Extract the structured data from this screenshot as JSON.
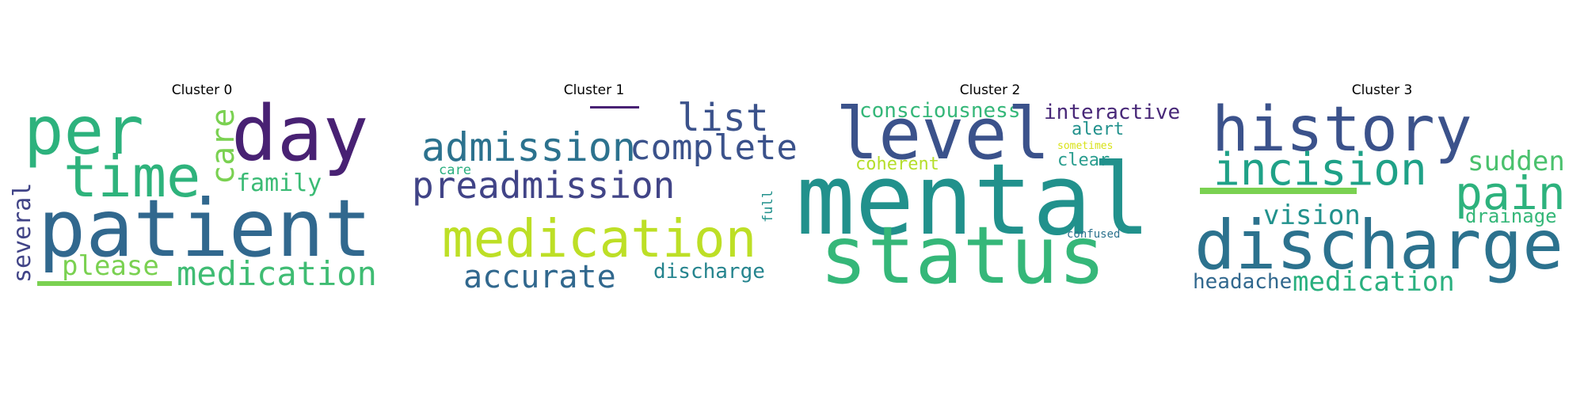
{
  "figure": {
    "clusters": [
      {
        "title": "Cluster 0",
        "words": [
          {
            "text": "per",
            "color": "#2db27d"
          },
          {
            "text": "day",
            "color": "#482173"
          },
          {
            "text": "care",
            "color": "#7ad151"
          },
          {
            "text": "time",
            "color": "#2eb37c"
          },
          {
            "text": "family",
            "color": "#3bbb75"
          },
          {
            "text": "patient",
            "color": "#31688e"
          },
          {
            "text": "several",
            "color": "#414487"
          },
          {
            "text": "please",
            "color": "#7ad151"
          },
          {
            "text": "medication",
            "color": "#3fbc73"
          }
        ]
      },
      {
        "title": "Cluster 1",
        "words": [
          {
            "text": "list",
            "color": "#3b528b"
          },
          {
            "text": "admission",
            "color": "#2c728e"
          },
          {
            "text": "complete",
            "color": "#3b528b"
          },
          {
            "text": "care",
            "color": "#29af7f"
          },
          {
            "text": "preadmission",
            "color": "#414487"
          },
          {
            "text": "full",
            "color": "#21918c"
          },
          {
            "text": "medication",
            "color": "#bddf26"
          },
          {
            "text": "accurate",
            "color": "#31688e"
          },
          {
            "text": "discharge",
            "color": "#25848e"
          }
        ]
      },
      {
        "title": "Cluster 2",
        "words": [
          {
            "text": "consciousness",
            "color": "#35b779"
          },
          {
            "text": "interactive",
            "color": "#482878"
          },
          {
            "text": "level",
            "color": "#3b528b"
          },
          {
            "text": "alert",
            "color": "#21918c"
          },
          {
            "text": "sometimes",
            "color": "#d8e219"
          },
          {
            "text": "coherent",
            "color": "#b5de2b"
          },
          {
            "text": "clear",
            "color": "#2a9d8f"
          },
          {
            "text": "mental",
            "color": "#21918c"
          },
          {
            "text": "confused",
            "color": "#2c728e"
          },
          {
            "text": "status",
            "color": "#35b779"
          }
        ]
      },
      {
        "title": "Cluster 3",
        "words": [
          {
            "text": "history",
            "color": "#3b528b"
          },
          {
            "text": "incision",
            "color": "#1fa187"
          },
          {
            "text": "sudden",
            "color": "#4ac16d"
          },
          {
            "text": "pain",
            "color": "#2db27d"
          },
          {
            "text": "vision",
            "color": "#21918c"
          },
          {
            "text": "drainage",
            "color": "#35b779"
          },
          {
            "text": "discharge",
            "color": "#2c728e"
          },
          {
            "text": "headache",
            "color": "#31688e"
          },
          {
            "text": "medication",
            "color": "#2ab07f"
          }
        ]
      }
    ]
  }
}
